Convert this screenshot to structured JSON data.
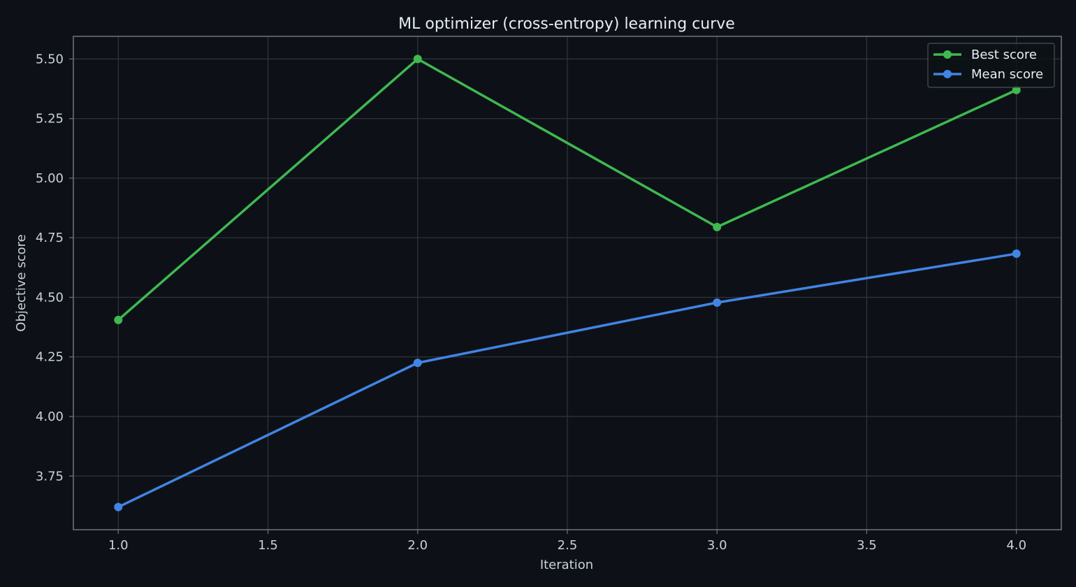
{
  "chart_data": {
    "type": "line",
    "title": "ML optimizer (cross-entropy) learning curve",
    "xlabel": "Iteration",
    "ylabel": "Objective score",
    "xlim": [
      0.85,
      4.15
    ],
    "ylim": [
      3.525,
      5.595
    ],
    "xticks": [
      1.0,
      1.5,
      2.0,
      2.5,
      3.0,
      3.5,
      4.0
    ],
    "xtick_labels": [
      "1.0",
      "1.5",
      "2.0",
      "2.5",
      "3.0",
      "3.5",
      "4.0"
    ],
    "yticks": [
      3.75,
      4.0,
      4.25,
      4.5,
      4.75,
      5.0,
      5.25,
      5.5
    ],
    "ytick_labels": [
      "3.75",
      "4.00",
      "4.25",
      "4.50",
      "4.75",
      "5.00",
      "5.25",
      "5.50"
    ],
    "grid": true,
    "legend_position": "top-right",
    "x": [
      1.0,
      2.0,
      3.0,
      4.0
    ],
    "series": [
      {
        "name": "Best score",
        "color": "#3fb950",
        "values": [
          4.405,
          5.5,
          4.795,
          5.37
        ]
      },
      {
        "name": "Mean score",
        "color": "#4184e4",
        "values": [
          3.62,
          4.225,
          4.478,
          4.683
        ]
      }
    ],
    "colors": {
      "background": "#0d1117",
      "axes_edge": "#6e7681",
      "grid": "#30363d",
      "text": "#e6edf3",
      "legend_bg": "#0d1117",
      "legend_edge": "#484f58"
    }
  }
}
